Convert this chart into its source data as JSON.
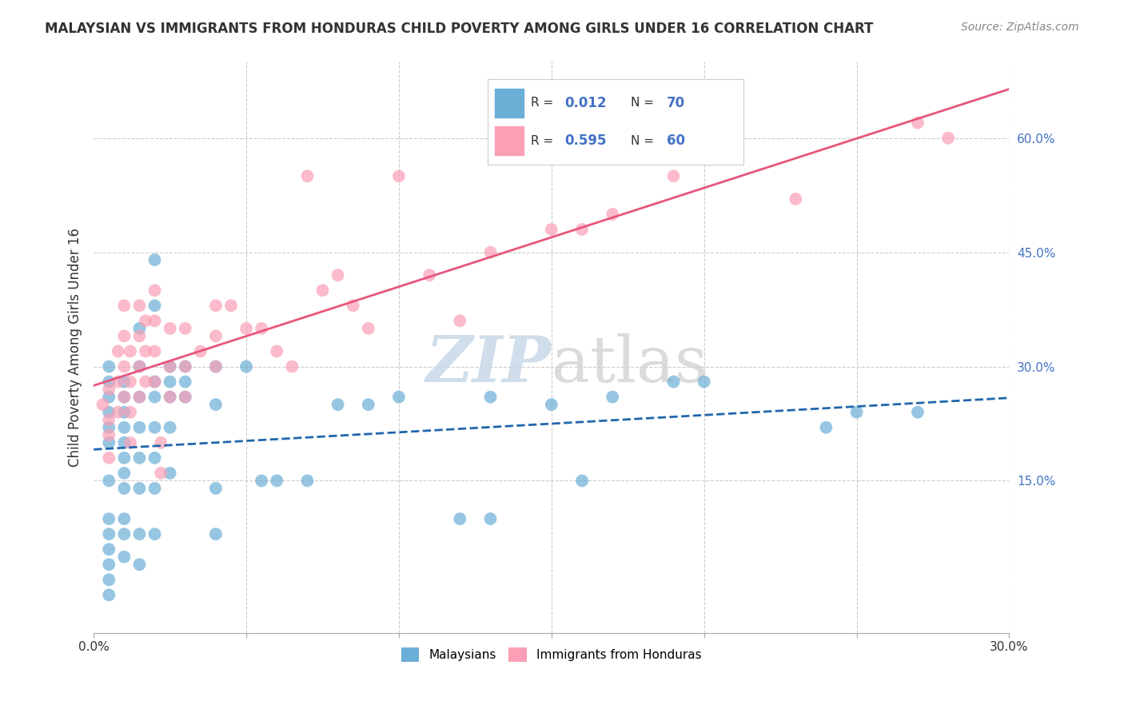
{
  "title": "MALAYSIAN VS IMMIGRANTS FROM HONDURAS CHILD POVERTY AMONG GIRLS UNDER 16 CORRELATION CHART",
  "source": "Source: ZipAtlas.com",
  "ylabel": "Child Poverty Among Girls Under 16",
  "xlim": [
    0.0,
    0.3
  ],
  "ylim": [
    -0.05,
    0.7
  ],
  "watermark_zip": "ZIP",
  "watermark_atlas": "atlas",
  "legend_r1": "0.012",
  "legend_n1": "70",
  "legend_r2": "0.595",
  "legend_n2": "60",
  "blue_color": "#6baed6",
  "pink_color": "#fa9fb5",
  "blue_line_color": "#2166ac",
  "pink_line_color": "#e8567c",
  "right_tick_color": "#4472c4",
  "grid_color": "#cccccc",
  "title_color": "#333333",
  "source_color": "#888888",
  "ylabel_color": "#333333",
  "blue_scatter": [
    [
      0.005,
      0.2
    ],
    [
      0.005,
      0.22
    ],
    [
      0.005,
      0.24
    ],
    [
      0.005,
      0.26
    ],
    [
      0.005,
      0.28
    ],
    [
      0.005,
      0.3
    ],
    [
      0.005,
      0.15
    ],
    [
      0.005,
      0.1
    ],
    [
      0.005,
      0.08
    ],
    [
      0.005,
      0.06
    ],
    [
      0.005,
      0.04
    ],
    [
      0.005,
      0.02
    ],
    [
      0.005,
      0.0
    ],
    [
      0.01,
      0.28
    ],
    [
      0.01,
      0.26
    ],
    [
      0.01,
      0.24
    ],
    [
      0.01,
      0.22
    ],
    [
      0.01,
      0.2
    ],
    [
      0.01,
      0.18
    ],
    [
      0.01,
      0.16
    ],
    [
      0.01,
      0.14
    ],
    [
      0.01,
      0.1
    ],
    [
      0.01,
      0.08
    ],
    [
      0.01,
      0.05
    ],
    [
      0.015,
      0.35
    ],
    [
      0.015,
      0.3
    ],
    [
      0.015,
      0.26
    ],
    [
      0.015,
      0.22
    ],
    [
      0.015,
      0.18
    ],
    [
      0.015,
      0.14
    ],
    [
      0.015,
      0.08
    ],
    [
      0.015,
      0.04
    ],
    [
      0.02,
      0.44
    ],
    [
      0.02,
      0.38
    ],
    [
      0.02,
      0.28
    ],
    [
      0.02,
      0.26
    ],
    [
      0.02,
      0.22
    ],
    [
      0.02,
      0.18
    ],
    [
      0.02,
      0.14
    ],
    [
      0.02,
      0.08
    ],
    [
      0.025,
      0.3
    ],
    [
      0.025,
      0.28
    ],
    [
      0.025,
      0.26
    ],
    [
      0.025,
      0.22
    ],
    [
      0.025,
      0.16
    ],
    [
      0.03,
      0.3
    ],
    [
      0.03,
      0.28
    ],
    [
      0.03,
      0.26
    ],
    [
      0.04,
      0.3
    ],
    [
      0.04,
      0.25
    ],
    [
      0.04,
      0.14
    ],
    [
      0.04,
      0.08
    ],
    [
      0.05,
      0.3
    ],
    [
      0.055,
      0.15
    ],
    [
      0.06,
      0.15
    ],
    [
      0.07,
      0.15
    ],
    [
      0.08,
      0.25
    ],
    [
      0.09,
      0.25
    ],
    [
      0.1,
      0.26
    ],
    [
      0.12,
      0.1
    ],
    [
      0.13,
      0.26
    ],
    [
      0.13,
      0.1
    ],
    [
      0.15,
      0.25
    ],
    [
      0.16,
      0.15
    ],
    [
      0.17,
      0.26
    ],
    [
      0.19,
      0.28
    ],
    [
      0.2,
      0.28
    ],
    [
      0.24,
      0.22
    ],
    [
      0.25,
      0.24
    ],
    [
      0.27,
      0.24
    ]
  ],
  "pink_scatter": [
    [
      0.003,
      0.25
    ],
    [
      0.005,
      0.27
    ],
    [
      0.005,
      0.23
    ],
    [
      0.005,
      0.21
    ],
    [
      0.005,
      0.18
    ],
    [
      0.008,
      0.32
    ],
    [
      0.008,
      0.28
    ],
    [
      0.008,
      0.24
    ],
    [
      0.01,
      0.38
    ],
    [
      0.01,
      0.34
    ],
    [
      0.01,
      0.3
    ],
    [
      0.01,
      0.26
    ],
    [
      0.012,
      0.32
    ],
    [
      0.012,
      0.28
    ],
    [
      0.012,
      0.24
    ],
    [
      0.012,
      0.2
    ],
    [
      0.015,
      0.38
    ],
    [
      0.015,
      0.34
    ],
    [
      0.015,
      0.3
    ],
    [
      0.015,
      0.26
    ],
    [
      0.017,
      0.36
    ],
    [
      0.017,
      0.32
    ],
    [
      0.017,
      0.28
    ],
    [
      0.02,
      0.4
    ],
    [
      0.02,
      0.36
    ],
    [
      0.02,
      0.32
    ],
    [
      0.02,
      0.28
    ],
    [
      0.022,
      0.2
    ],
    [
      0.022,
      0.16
    ],
    [
      0.025,
      0.35
    ],
    [
      0.025,
      0.3
    ],
    [
      0.025,
      0.26
    ],
    [
      0.03,
      0.35
    ],
    [
      0.03,
      0.3
    ],
    [
      0.03,
      0.26
    ],
    [
      0.035,
      0.32
    ],
    [
      0.04,
      0.38
    ],
    [
      0.04,
      0.34
    ],
    [
      0.04,
      0.3
    ],
    [
      0.045,
      0.38
    ],
    [
      0.05,
      0.35
    ],
    [
      0.055,
      0.35
    ],
    [
      0.06,
      0.32
    ],
    [
      0.065,
      0.3
    ],
    [
      0.07,
      0.55
    ],
    [
      0.075,
      0.4
    ],
    [
      0.08,
      0.42
    ],
    [
      0.085,
      0.38
    ],
    [
      0.09,
      0.35
    ],
    [
      0.1,
      0.55
    ],
    [
      0.11,
      0.42
    ],
    [
      0.12,
      0.36
    ],
    [
      0.13,
      0.45
    ],
    [
      0.15,
      0.48
    ],
    [
      0.16,
      0.48
    ],
    [
      0.17,
      0.5
    ],
    [
      0.19,
      0.55
    ],
    [
      0.23,
      0.52
    ],
    [
      0.27,
      0.62
    ],
    [
      0.28,
      0.6
    ]
  ]
}
